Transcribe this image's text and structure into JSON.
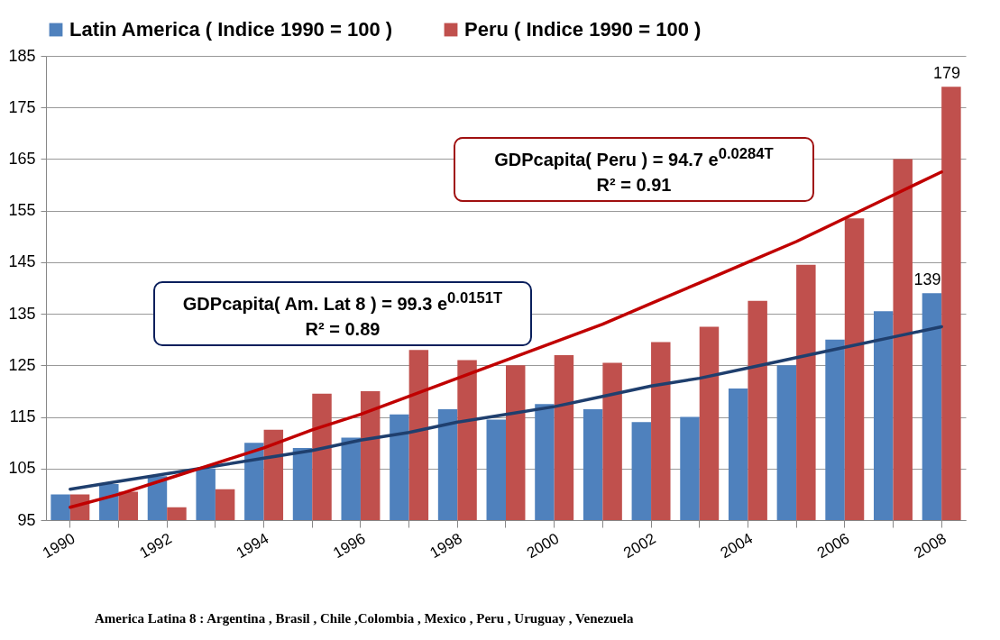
{
  "chart_data": {
    "type": "bar",
    "categories": [
      "1990",
      null,
      "1992",
      null,
      "1994",
      null,
      "1996",
      null,
      "1998",
      null,
      "2000",
      null,
      "2002",
      null,
      "2004",
      null,
      "2006",
      null,
      "2008"
    ],
    "series": [
      {
        "name": "Latin America   ( Indice 1990 = 100 )",
        "color": "#4f81bd",
        "values": [
          100,
          102,
          103.5,
          105,
          110,
          109,
          111,
          115.5,
          116.5,
          114.5,
          117.5,
          116.5,
          114,
          115,
          120.5,
          125,
          130,
          135.5,
          139
        ],
        "value_labels": [
          null,
          null,
          null,
          null,
          null,
          null,
          null,
          null,
          null,
          null,
          null,
          null,
          null,
          null,
          null,
          null,
          null,
          null,
          "139"
        ]
      },
      {
        "name": "Peru ( Indice 1990 = 100 )",
        "color": "#c0504d",
        "values": [
          100,
          100.5,
          97.5,
          101,
          112.5,
          119.5,
          120,
          128,
          126,
          125,
          127,
          125.5,
          129.5,
          132.5,
          137.5,
          144.5,
          153.5,
          165,
          179
        ],
        "value_labels": [
          null,
          null,
          null,
          null,
          null,
          null,
          null,
          null,
          null,
          null,
          null,
          null,
          null,
          null,
          null,
          null,
          null,
          null,
          "179"
        ]
      },
      {
        "type": "line",
        "color": "#1f3f6e",
        "values": [
          101,
          102.5,
          104,
          105.5,
          107,
          108.5,
          110.5,
          112,
          114,
          115.5,
          117,
          119,
          121,
          122.5,
          124.5,
          126.5,
          128.5,
          130.5,
          132.5
        ]
      },
      {
        "type": "line",
        "color": "#c00000",
        "values": [
          97.5,
          100,
          103,
          106,
          109,
          112.5,
          115.5,
          119,
          122.5,
          126,
          129.5,
          133,
          137,
          141,
          145,
          149,
          153.5,
          158,
          162.5
        ]
      }
    ],
    "ylim": [
      95,
      185
    ],
    "yticks": [
      95,
      105,
      115,
      125,
      135,
      145,
      155,
      165,
      175,
      185
    ],
    "grid": "y",
    "legend": "top",
    "annotations": [
      "GDPcapita( Peru ) = 94.7  e$^{0.0284T}$",
      "R² = 0.91",
      "GDPcapita( Am. Lat 8 ) = 99.3 e$^{0.0151T}$",
      "R² = 0.89",
      "America Latina 8 : Argentina , Brasil , Chile ,Colombia , Mexico , Peru , Uruguay , Venezuela"
    ]
  }
}
